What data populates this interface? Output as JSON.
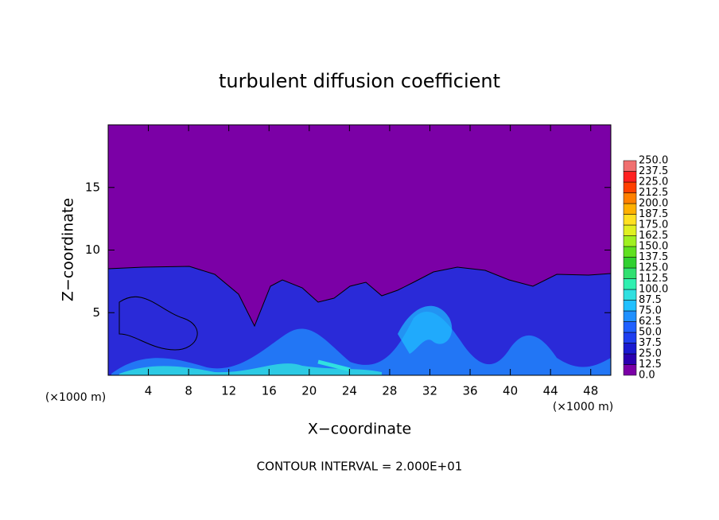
{
  "chart_data": {
    "type": "contour",
    "title": "turbulent diffusion coefficient",
    "x_label": "X−coordinate",
    "y_label": "Z−coordinate",
    "x_unit": "(×1000 m)",
    "x_unit_right": "(×1000 m)",
    "footer": "CONTOUR INTERVAL = 2.000E+01",
    "xlim": [
      0,
      50
    ],
    "ylim": [
      0,
      20
    ],
    "xticks": [
      4,
      8,
      12,
      16,
      20,
      24,
      28,
      32,
      36,
      40,
      44,
      48
    ],
    "yticks": [
      5,
      10,
      15
    ],
    "colorbar": {
      "levels": [
        {
          "value": 0,
          "label": "0.0"
        },
        {
          "value": 12.5,
          "label": "12.5"
        },
        {
          "value": 25,
          "label": "25.0"
        },
        {
          "value": 37.5,
          "label": "37.5"
        },
        {
          "value": 50,
          "label": "50.0"
        },
        {
          "value": 62.5,
          "label": "62.5"
        },
        {
          "value": 75,
          "label": "75.0"
        },
        {
          "value": 87.5,
          "label": "87.5"
        },
        {
          "value": 100,
          "label": "100.0"
        },
        {
          "value": 112.5,
          "label": "112.5"
        },
        {
          "value": 125,
          "label": "125.0"
        },
        {
          "value": 137.5,
          "label": "137.5"
        },
        {
          "value": 150,
          "label": "150.0"
        },
        {
          "value": 162.5,
          "label": "162.5"
        },
        {
          "value": 175,
          "label": "175.0"
        },
        {
          "value": 187.5,
          "label": "187.5"
        },
        {
          "value": 200,
          "label": "200.0"
        },
        {
          "value": 212.5,
          "label": "212.5"
        },
        {
          "value": 225,
          "label": "225.0"
        },
        {
          "value": 237.5,
          "label": "237.5"
        },
        {
          "value": 250,
          "label": "250.0"
        }
      ],
      "colors": [
        "#7b00a6",
        "#2b00b0",
        "#1a1ad0",
        "#1f3ff0",
        "#2060ff",
        "#2090ff",
        "#20c0ff",
        "#30e0e0",
        "#30f0b0",
        "#30e070",
        "#30d030",
        "#60e020",
        "#a0f020",
        "#e0f020",
        "#ffe020",
        "#ffb000",
        "#ff8000",
        "#ff4000",
        "#ff2020",
        "#f07070"
      ]
    }
  }
}
